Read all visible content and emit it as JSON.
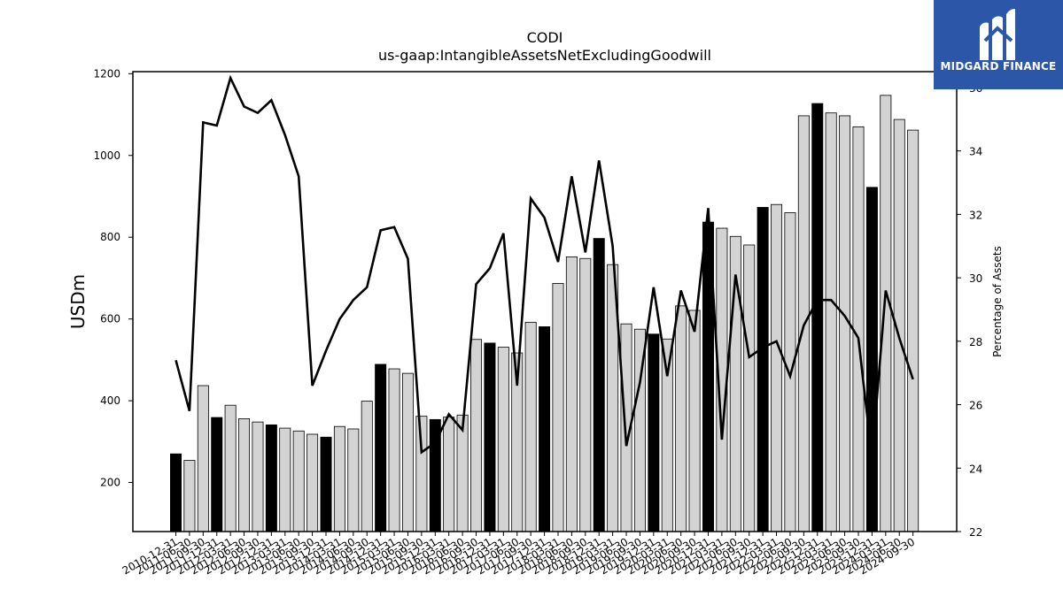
{
  "chart_data": {
    "type": "bar+line",
    "title": "CODI",
    "subtitle": "us-gaap:IntangibleAssetsNetExcludingGoodwill",
    "ylabel": "USDm",
    "y2label": "Percentage of Assets",
    "ylim": [
      80,
      1205
    ],
    "y2lim": [
      22,
      36.5
    ],
    "yticks": [
      200,
      400,
      600,
      800,
      1000,
      1200
    ],
    "y2ticks": [
      22,
      24,
      26,
      28,
      30,
      32,
      34,
      36
    ],
    "categories": [
      "2010-12-31",
      "2011-06-30",
      "2011-09-30",
      "2011-12-31",
      "2012-03-31",
      "2012-06-30",
      "2012-09-30",
      "2012-12-31",
      "2013-03-31",
      "2013-06-30",
      "2013-09-30",
      "2013-12-31",
      "2014-03-31",
      "2014-06-30",
      "2014-09-30",
      "2014-12-31",
      "2015-03-31",
      "2015-06-30",
      "2015-09-30",
      "2015-12-31",
      "2016-03-31",
      "2016-06-30",
      "2016-09-30",
      "2016-12-31",
      "2017-03-31",
      "2017-06-30",
      "2017-09-30",
      "2017-12-31",
      "2018-03-31",
      "2018-06-30",
      "2018-09-30",
      "2018-12-31",
      "2019-03-31",
      "2019-06-30",
      "2019-09-30",
      "2019-12-31",
      "2020-03-31",
      "2020-06-30",
      "2020-09-30",
      "2020-12-31",
      "2021-03-31",
      "2021-06-30",
      "2021-09-30",
      "2021-12-31",
      "2022-03-31",
      "2022-06-30",
      "2022-09-30",
      "2022-12-31",
      "2023-03-31",
      "2023-06-30",
      "2023-09-30",
      "2023-12-31",
      "2024-03-31",
      "2024-06-30",
      "2024-09-30"
    ],
    "series": [
      {
        "kind": "bar",
        "values": [
          270,
          254,
          437,
          359,
          389,
          356,
          348,
          341,
          333,
          326,
          318,
          311,
          337,
          331,
          399,
          489,
          478,
          467,
          362,
          354,
          360,
          365,
          550,
          541,
          531,
          517,
          592,
          581,
          687,
          752,
          748,
          797,
          733,
          588,
          575,
          563,
          551,
          632,
          621,
          837,
          822,
          802,
          781,
          873,
          880,
          860,
          1097,
          1127,
          1104,
          1097,
          1070,
          922,
          1147,
          1088,
          1062
        ],
        "colors": [
          "#000000",
          "#d3d3d3"
        ],
        "highlight": [
          1,
          0,
          0,
          1,
          0,
          0,
          0,
          1,
          0,
          0,
          0,
          1,
          0,
          0,
          0,
          1,
          0,
          0,
          0,
          1,
          0,
          0,
          0,
          1,
          0,
          0,
          0,
          1,
          0,
          0,
          0,
          1,
          0,
          0,
          0,
          1,
          0,
          0,
          0,
          1,
          0,
          0,
          0,
          1,
          0,
          0,
          0,
          1,
          0,
          0,
          0,
          1,
          0,
          0,
          0
        ]
      },
      {
        "kind": "line",
        "axis": "right",
        "values": [
          27.4,
          25.8,
          34.9,
          34.8,
          36.3,
          35.4,
          35.2,
          35.6,
          34.5,
          33.2,
          26.6,
          27.7,
          28.7,
          29.3,
          29.7,
          31.5,
          31.6,
          30.6,
          24.5,
          24.8,
          25.7,
          25.2,
          29.8,
          30.3,
          31.4,
          26.6,
          32.5,
          31.9,
          30.5,
          33.2,
          30.8,
          33.7,
          31.0,
          24.7,
          26.7,
          29.7,
          26.9,
          29.6,
          28.3,
          32.2,
          24.9,
          30.1,
          27.5,
          27.8,
          28.0,
          26.9,
          28.5,
          29.3,
          29.3,
          28.8,
          28.1,
          24.3,
          29.6,
          28.1,
          26.8
        ]
      }
    ],
    "colors": {
      "line": "#000000",
      "bar_edge": "#000000",
      "bar_dark": "#000000",
      "bar_light": "#d3d3d3"
    }
  },
  "logo": {
    "text": "MIDGARD FINANCE",
    "background": "#2c56a8",
    "icon": "midgard-logo-icon"
  }
}
